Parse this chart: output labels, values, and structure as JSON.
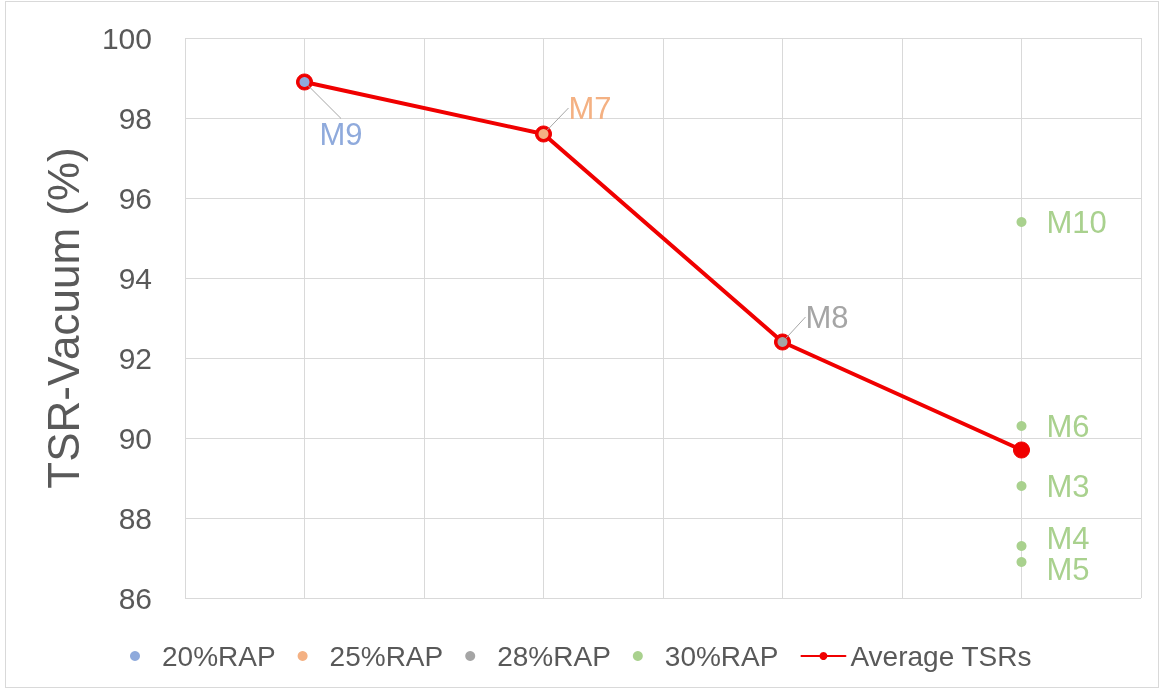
{
  "chart_data": {
    "type": "scatter",
    "ylabel": "TSR-Vacuum (%)",
    "categories": [
      null,
      null,
      null,
      null
    ],
    "ylim": [
      86,
      100
    ],
    "yticks": [
      86,
      88,
      90,
      92,
      94,
      96,
      98,
      100
    ],
    "tick_labels": "y",
    "grid": true,
    "legend": "bottom",
    "marker": "circle",
    "line_style": "solid",
    "series": [
      {
        "name": "20%RAP",
        "color": "#8faadc",
        "values": [
          98.9,
          null,
          null,
          null
        ],
        "value_labels": [
          "M9",
          null,
          null,
          null
        ]
      },
      {
        "name": "25%RAP",
        "color": "#f4b183",
        "values": [
          null,
          97.6,
          null,
          null
        ],
        "value_labels": [
          null,
          "M7",
          null,
          null
        ]
      },
      {
        "name": "28%RAP",
        "color": "#a5a5a5",
        "values": [
          null,
          null,
          92.4,
          null
        ],
        "value_labels": [
          null,
          null,
          "M8",
          null
        ]
      },
      {
        "name": "30%RAP",
        "color": "#a9d18e",
        "values": [
          null,
          null,
          null,
          95.4
        ],
        "value_labels": [
          null,
          null,
          null,
          "M10"
        ]
      },
      {
        "color": "#a9d18e",
        "values": [
          null,
          null,
          null,
          90.3
        ],
        "value_labels": [
          null,
          null,
          null,
          "M6"
        ]
      },
      {
        "color": "#a9d18e",
        "values": [
          null,
          null,
          null,
          88.8
        ],
        "value_labels": [
          null,
          null,
          null,
          "M3"
        ]
      },
      {
        "color": "#a9d18e",
        "values": [
          null,
          null,
          null,
          87.3
        ],
        "value_labels": [
          null,
          null,
          null,
          "M4"
        ]
      },
      {
        "color": "#a9d18e",
        "values": [
          null,
          null,
          null,
          86.9
        ],
        "value_labels": [
          null,
          null,
          null,
          "M5"
        ]
      },
      {
        "name": "Average TSRs",
        "type": "line",
        "color": "#f00000",
        "values": [
          98.9,
          97.6,
          92.4,
          89.7
        ]
      }
    ]
  }
}
